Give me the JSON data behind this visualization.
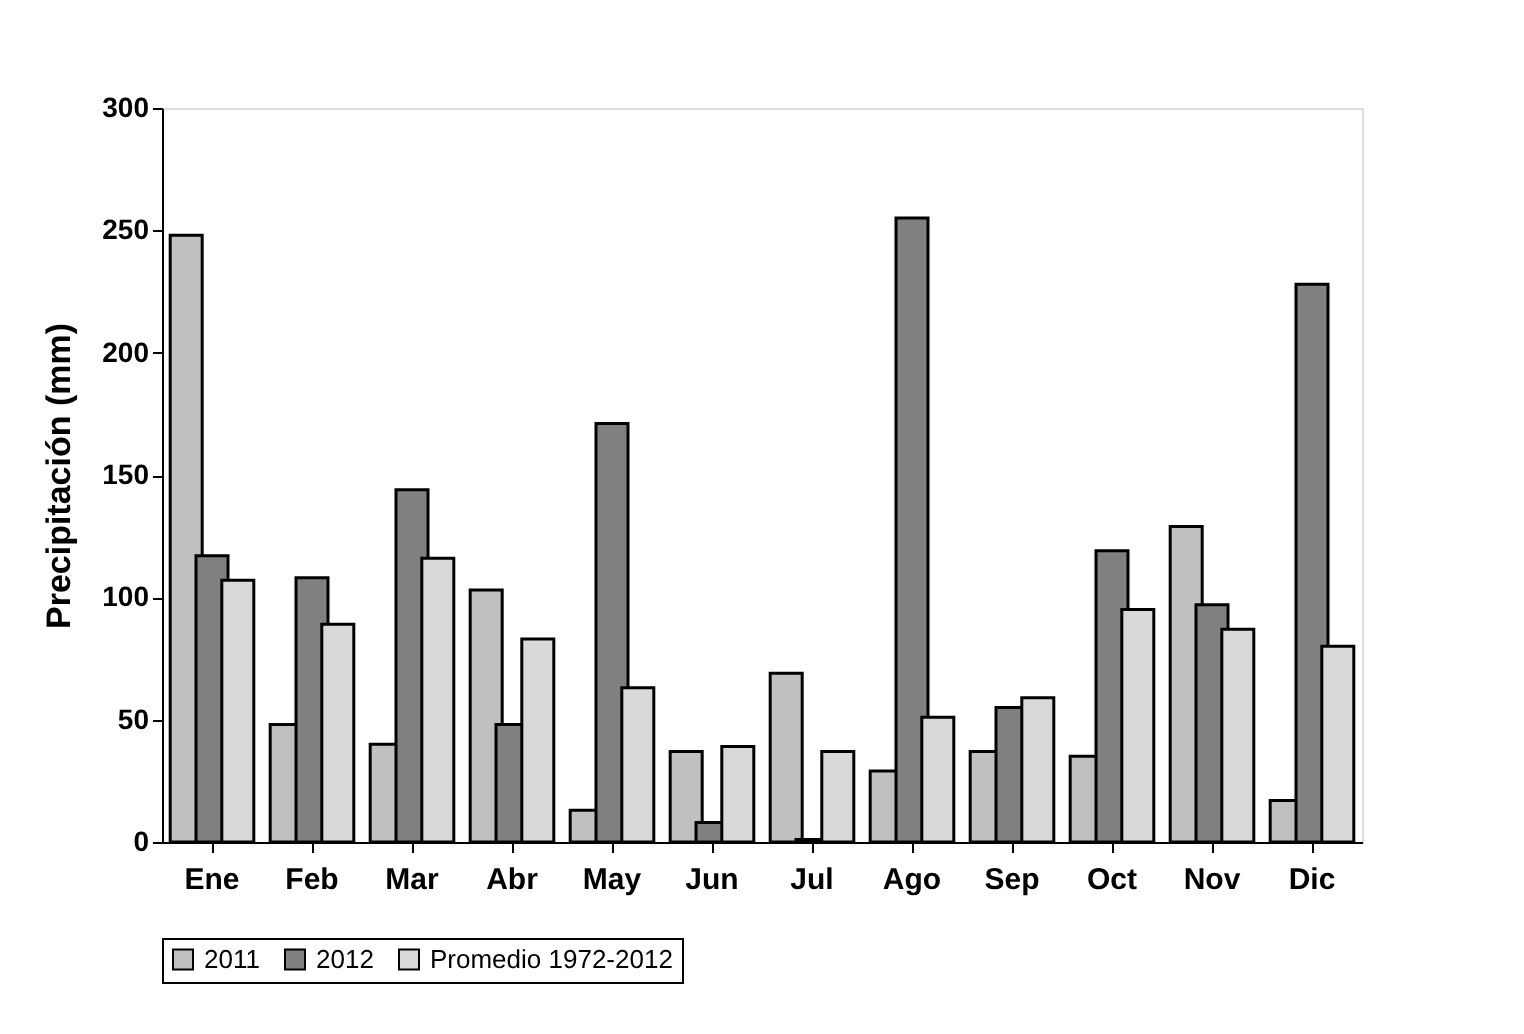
{
  "chart_data": {
    "type": "bar",
    "ylabel": "Precipitación (mm)",
    "categories": [
      "Ene",
      "Feb",
      "Mar",
      "Abr",
      "May",
      "Jun",
      "Jul",
      "Ago",
      "Sep",
      "Oct",
      "Nov",
      "Dic"
    ],
    "series": [
      {
        "name": "2011",
        "color": "#c0c0c0",
        "values": [
          248,
          48,
          40,
          103,
          13,
          37,
          69,
          29,
          37,
          35,
          129,
          17
        ]
      },
      {
        "name": "2012",
        "color": "#808080",
        "values": [
          117,
          108,
          144,
          48,
          171,
          8,
          1,
          255,
          55,
          119,
          97,
          228
        ]
      },
      {
        "name": "Promedio 1972-2012",
        "color": "#d9d9d9",
        "values": [
          107,
          89,
          116,
          83,
          63,
          39,
          37,
          51,
          59,
          95,
          87,
          80
        ]
      }
    ],
    "ylim": [
      0,
      300
    ],
    "yticks": [
      0,
      50,
      100,
      150,
      200,
      250,
      300
    ],
    "grid": false,
    "legend": "bottom"
  }
}
